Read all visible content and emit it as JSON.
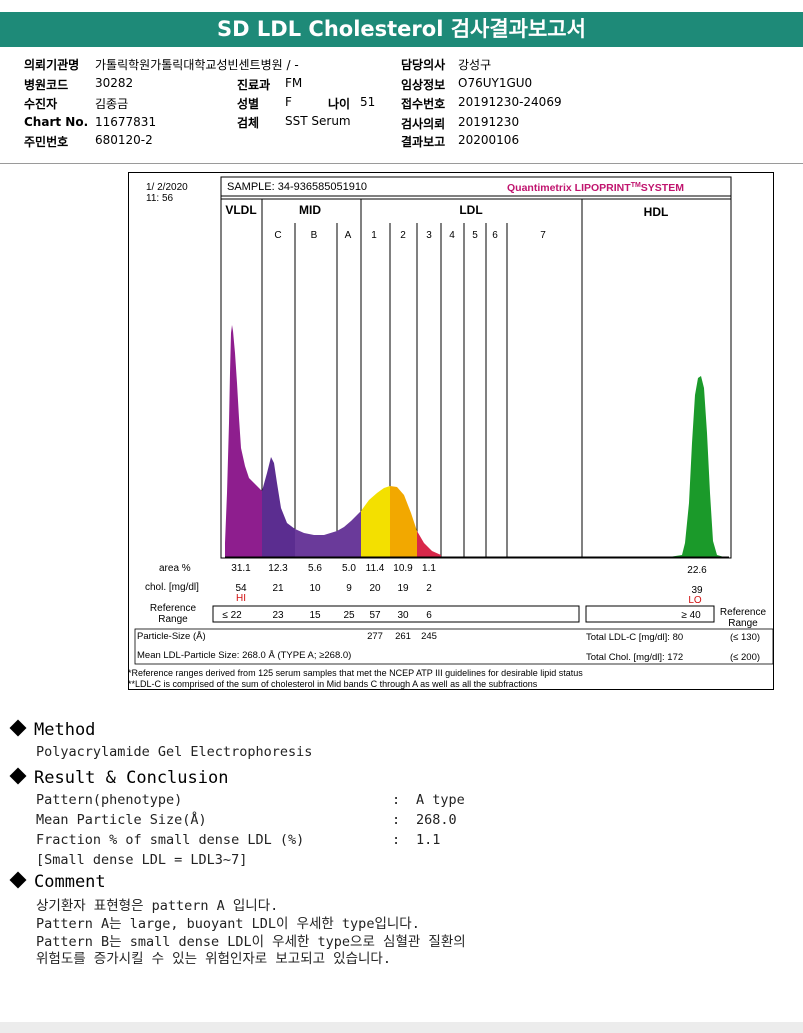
{
  "report": {
    "title": "SD LDL Cholesterol 검사결과보고서"
  },
  "info": {
    "institution_label": "의뢰기관명",
    "institution_value": "가톨릭학원가톨릭대학교성빈센트병원 / -",
    "doctor_label": "담당의사",
    "doctor_value": "강성구",
    "hospital_code_label": "병원코드",
    "hospital_code_value": "30282",
    "dept_label": "진료과",
    "dept_value": "FM",
    "clinical_label": "임상정보",
    "clinical_value": "O76UY1GU0",
    "patient_label": "수진자",
    "patient_value": "김종금",
    "sex_label": "성별",
    "sex_value": "F",
    "age_label": "나이",
    "age_value": "51",
    "receipt_label": "접수번호",
    "receipt_value": "20191230-24069",
    "chart_label": "Chart No.",
    "chart_value": "11677831",
    "specimen_label": "검체",
    "specimen_value": "SST Serum",
    "request_label": "검사의뢰",
    "request_value": "20191230",
    "id_label": "주민번호",
    "id_value": "680120-2",
    "result_label": "결과보고",
    "result_value": "20200106"
  },
  "lipoprint": {
    "date": "1/ 2/2020",
    "time": "11: 56",
    "sample": "SAMPLE:  34-936585051910",
    "brand": "Quantimetrix LIPOPRINT",
    "brand_tm": "TM",
    "brand_system": "SYSTEM",
    "vldl_label": "VLDL",
    "mid_label": "MID",
    "ldl_label": "LDL",
    "hdl_label": "HDL",
    "band_labels": [
      "C",
      "B",
      "A",
      "1",
      "2",
      "3",
      "4",
      "5",
      "6",
      "7"
    ],
    "area_label": "area %",
    "area_values": [
      "31.1",
      "12.3",
      "5.6",
      "5.0",
      "11.4",
      "10.9",
      "1.1"
    ],
    "area_hdl": "22.6",
    "chol_label": "chol. [mg/dl]",
    "chol_values": [
      "54",
      "21",
      "10",
      "9",
      "20",
      "19",
      "2"
    ],
    "chol_hdl": "39",
    "hi_flag": "HI",
    "lo_flag": "LO",
    "ref_label_1": "Reference",
    "ref_label_2": "Range",
    "ref_values": [
      "≤ 22",
      "23",
      "15",
      "25",
      "57",
      "30",
      "6"
    ],
    "ref_hdl": "≥ 40",
    "ref_right_1": "Reference",
    "ref_right_2": "Range",
    "particle_label": "Particle-Size (Å)",
    "particle_values": [
      "277",
      "261",
      "245"
    ],
    "total_ldl_label": "Total LDL-C [mg/dl]:  80",
    "total_ldl_range": "(≤ 130)",
    "mean_label": "Mean LDL-Particle Size:   268.0 Å   (TYPE A; ≥268.0)",
    "total_chol_label": "Total Chol. [mg/dl]:   172",
    "total_chol_range": "(≤ 200)",
    "footnote_1": "*Reference ranges derived from 125 serum samples that met the NCEP ATP III guidelines for desirable lipid status",
    "footnote_2": "**LDL-C is comprised of the sum of cholesterol in Mid bands C through A as well as all the subfractions",
    "colors": {
      "vldl": "#8e1e8e",
      "midc": "#5b2d90",
      "mid": "#6a3a9a",
      "ldl1": "#f3e000",
      "ldl2": "#f2a800",
      "ldl3": "#d8284a",
      "hdl": "#1b9a2a"
    }
  },
  "method": {
    "heading": "Method",
    "text": "Polyacrylamide Gel Electrophoresis"
  },
  "result": {
    "heading": "Result & Conclusion",
    "rows": [
      {
        "label": "Pattern(phenotype)",
        "sep": ":",
        "value": "A type"
      },
      {
        "label": "Mean Particle Size(Å)",
        "sep": ":",
        "value": "268.0"
      },
      {
        "label": "Fraction % of small dense LDL (%)",
        "sep": ":",
        "value": "1.1"
      },
      {
        "label": "[Small dense LDL = LDL3~7]",
        "sep": "",
        "value": ""
      }
    ]
  },
  "comment": {
    "heading": "Comment",
    "lines": [
      "상기환자 표현형은 pattern A 입니다.",
      "Pattern A는 large, buoyant LDL이 우세한 type입니다.",
      "Pattern B는 small dense LDL이 우세한 type으로 심혈관 질환의",
      "위험도를 증가시킬 수 있는 위험인자로 보고되고 있습니다."
    ]
  }
}
